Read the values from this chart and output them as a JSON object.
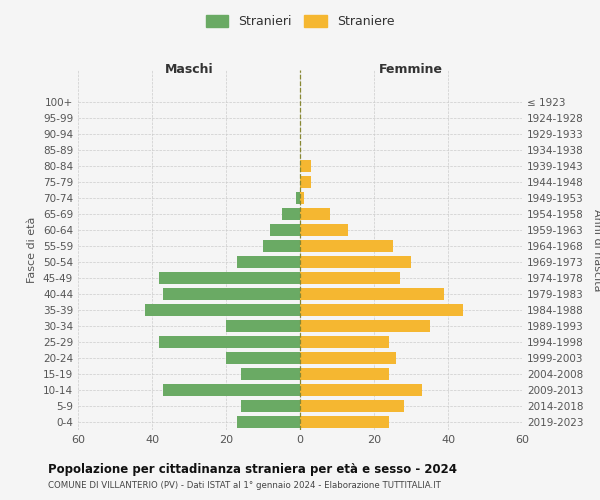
{
  "age_groups": [
    "0-4",
    "5-9",
    "10-14",
    "15-19",
    "20-24",
    "25-29",
    "30-34",
    "35-39",
    "40-44",
    "45-49",
    "50-54",
    "55-59",
    "60-64",
    "65-69",
    "70-74",
    "75-79",
    "80-84",
    "85-89",
    "90-94",
    "95-99",
    "100+"
  ],
  "birth_years": [
    "2019-2023",
    "2014-2018",
    "2009-2013",
    "2004-2008",
    "1999-2003",
    "1994-1998",
    "1989-1993",
    "1984-1988",
    "1979-1983",
    "1974-1978",
    "1969-1973",
    "1964-1968",
    "1959-1963",
    "1954-1958",
    "1949-1953",
    "1944-1948",
    "1939-1943",
    "1934-1938",
    "1929-1933",
    "1924-1928",
    "≤ 1923"
  ],
  "males": [
    17,
    16,
    37,
    16,
    20,
    38,
    20,
    42,
    37,
    38,
    17,
    10,
    8,
    5,
    1,
    0,
    0,
    0,
    0,
    0,
    0
  ],
  "females": [
    24,
    28,
    33,
    24,
    26,
    24,
    35,
    44,
    39,
    27,
    30,
    25,
    13,
    8,
    1,
    3,
    3,
    0,
    0,
    0,
    0
  ],
  "male_color": "#6aaa64",
  "female_color": "#f5b731",
  "bg_color": "#f5f5f5",
  "grid_color": "#cccccc",
  "title": "Popolazione per cittadinanza straniera per età e sesso - 2024",
  "subtitle1": "COMUNE DI VILLANTERIO (PV) - Dati ISTAT al 1° gennaio 2024 - Elaborazione TUTTITALIA.IT",
  "xlabel_left": "Maschi",
  "xlabel_right": "Femmine",
  "ylabel_left": "Fasce di età",
  "ylabel_right": "Anni di nascita",
  "legend_stranieri": "Stranieri",
  "legend_straniere": "Straniere",
  "xlim": 60
}
